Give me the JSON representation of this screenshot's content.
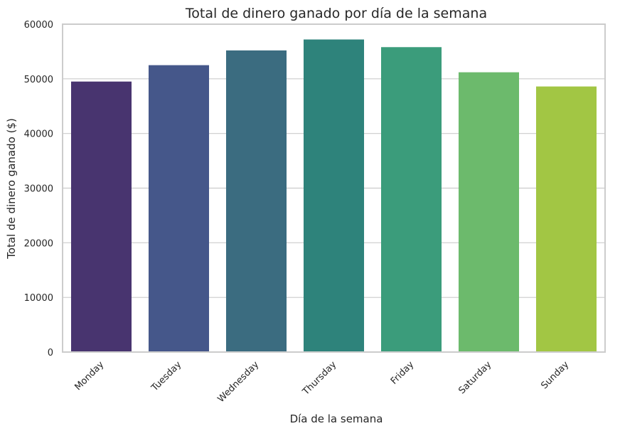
{
  "chart_data": {
    "type": "bar",
    "title": "Total de dinero ganado por día de la semana",
    "xlabel": "Día de la semana",
    "ylabel": "Total de dinero ganado ($)",
    "categories": [
      "Monday",
      "Tuesday",
      "Wednesday",
      "Thursday",
      "Friday",
      "Saturday",
      "Sunday"
    ],
    "values": [
      49500,
      52500,
      55200,
      57200,
      55800,
      51200,
      48600
    ],
    "colors": [
      "#48346f",
      "#45578a",
      "#3b6c80",
      "#2e837b",
      "#3b9c7b",
      "#6cba6c",
      "#a2c644"
    ],
    "ylim": [
      0,
      60000
    ],
    "yticks": [
      "0",
      "10000",
      "20000",
      "30000",
      "40000",
      "50000",
      "60000"
    ],
    "grid": "horizontal",
    "legend": "none"
  }
}
